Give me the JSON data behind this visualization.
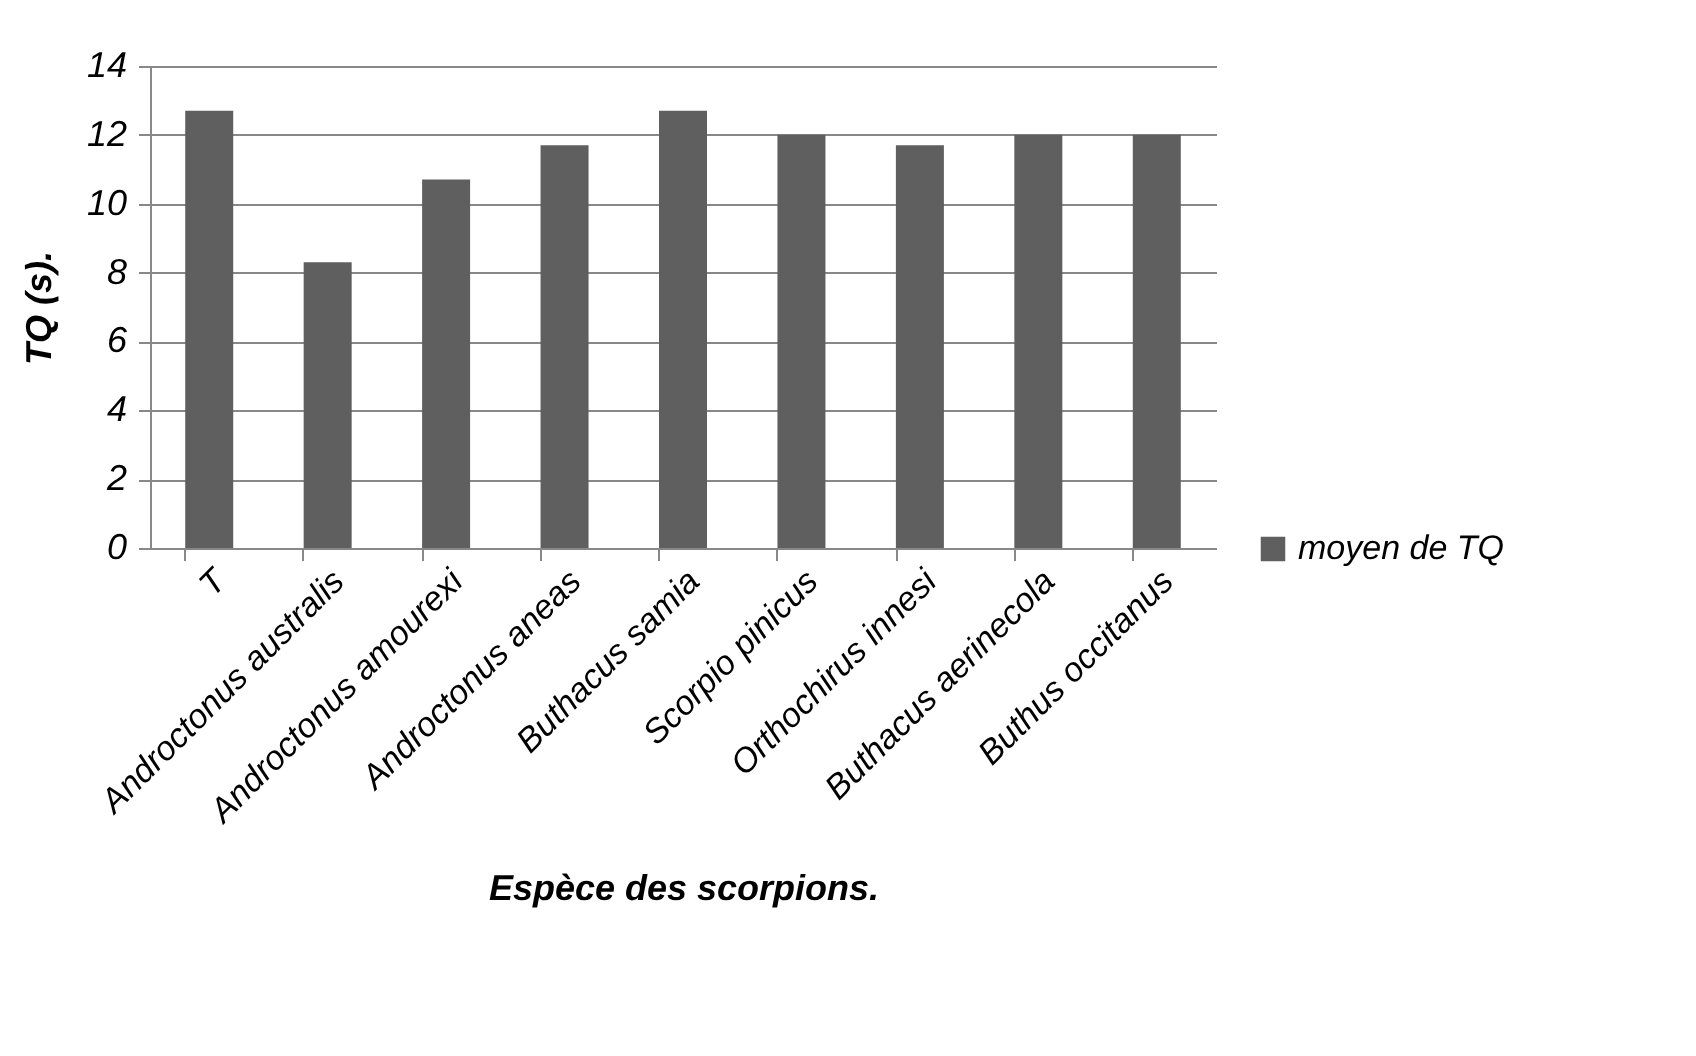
{
  "chart_data": {
    "type": "bar",
    "xlabel": "Espèce des scorpions.",
    "ylabel": "TQ (s).",
    "categories": [
      "T",
      "Androctonus australis",
      "Androctonus amourexi",
      "Androctonus aneas",
      "Buthacus samia",
      "Scorpio pinicus",
      "Orthochirus innesi",
      "Buthacus aerinecola",
      "Buthus occitanus"
    ],
    "series": [
      {
        "name": "moyen de TQ",
        "color": "#5f5f5f",
        "values": [
          12.7,
          8.3,
          10.7,
          11.7,
          12.7,
          12,
          11.7,
          12,
          12
        ]
      }
    ],
    "ylim": [
      0,
      14
    ],
    "yticks": [
      0,
      2,
      4,
      6,
      8,
      10,
      12,
      14
    ],
    "grid": "y",
    "legend": "right"
  }
}
